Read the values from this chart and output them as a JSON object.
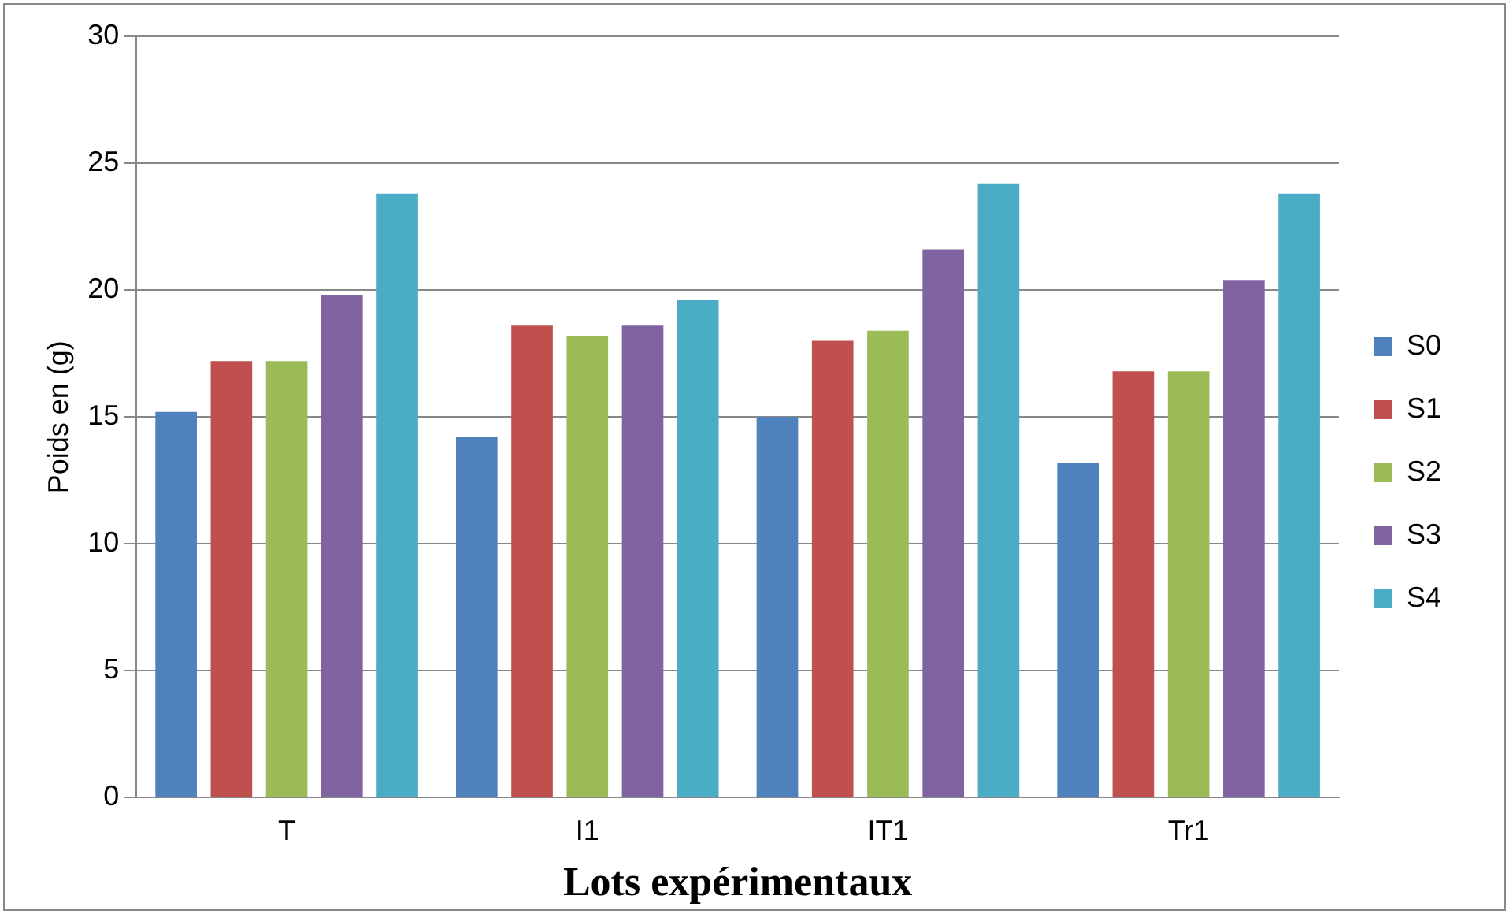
{
  "chart_data": {
    "type": "bar",
    "xlabel": "Lots expérimentaux",
    "ylabel": "Poids en (g)",
    "categories": [
      "T",
      "I1",
      "IT1",
      "Tr1"
    ],
    "series": [
      {
        "name": "S0",
        "color": "#4f81bd",
        "values": [
          15.2,
          14.2,
          15.0,
          13.2
        ]
      },
      {
        "name": "S1",
        "color": "#c0504d",
        "values": [
          17.2,
          18.6,
          18.0,
          16.8
        ]
      },
      {
        "name": "S2",
        "color": "#9bbb59",
        "values": [
          17.2,
          18.2,
          18.4,
          16.8
        ]
      },
      {
        "name": "S3",
        "color": "#8064a2",
        "values": [
          19.8,
          18.6,
          21.6,
          20.4
        ]
      },
      {
        "name": "S4",
        "color": "#4bacc6",
        "values": [
          23.8,
          19.6,
          24.2,
          23.8
        ]
      }
    ],
    "ylim": [
      0,
      30
    ],
    "yticks": [
      0,
      5,
      10,
      15,
      20,
      25,
      30
    ],
    "grid": "y",
    "legend": "right"
  }
}
